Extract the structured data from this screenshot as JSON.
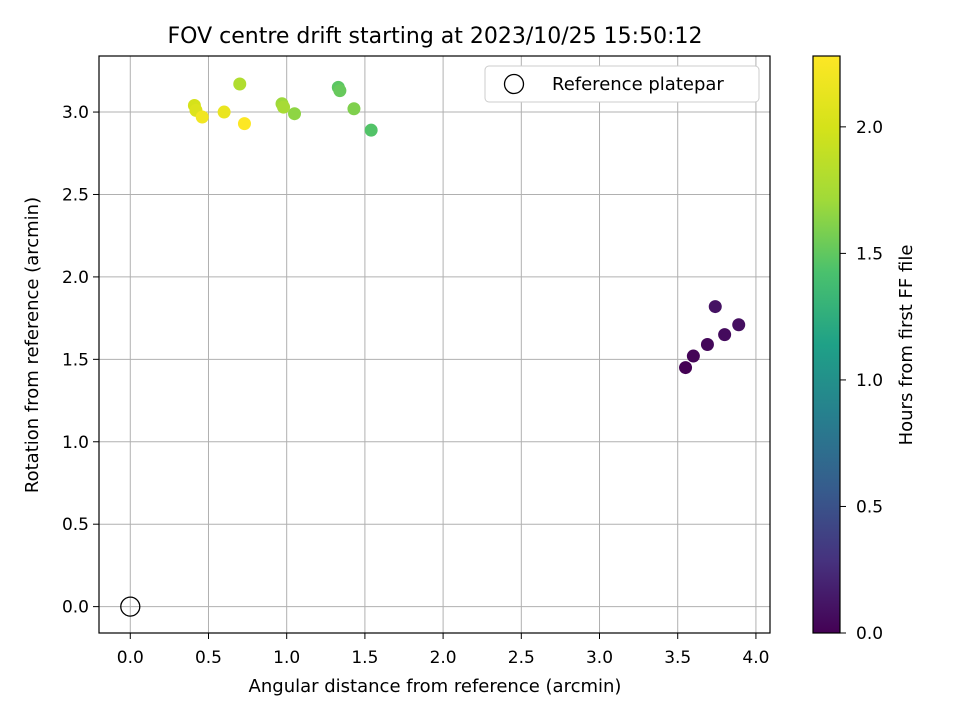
{
  "chart_data": {
    "type": "scatter",
    "title": "FOV centre drift starting at 2023/10/25 15:50:12",
    "xlabel": "Angular distance from reference (arcmin)",
    "ylabel": "Rotation from reference (arcmin)",
    "xlim": [
      -0.2,
      4.09
    ],
    "ylim": [
      -0.16,
      3.34
    ],
    "xticks": [
      "0.0",
      "0.5",
      "1.0",
      "1.5",
      "2.0",
      "2.5",
      "3.0",
      "3.5",
      "4.0"
    ],
    "yticks": [
      "0.0",
      "0.5",
      "1.0",
      "1.5",
      "2.0",
      "2.5",
      "3.0"
    ],
    "grid": true,
    "legend": {
      "label": "Reference platepar",
      "position": "top-right"
    },
    "reference_point": {
      "x": 0.0,
      "y": 0.0
    },
    "colorbar": {
      "label": "Hours from first FF file",
      "range": [
        0,
        2.28
      ],
      "ticks": [
        "0.0",
        "0.5",
        "1.0",
        "1.5",
        "2.0"
      ],
      "colormap": "viridis"
    },
    "points": [
      {
        "x": 3.55,
        "y": 1.45,
        "hours": 0.0
      },
      {
        "x": 3.6,
        "y": 1.52,
        "hours": 0.02
      },
      {
        "x": 3.69,
        "y": 1.59,
        "hours": 0.04
      },
      {
        "x": 3.8,
        "y": 1.65,
        "hours": 0.06
      },
      {
        "x": 3.89,
        "y": 1.71,
        "hours": 0.08
      },
      {
        "x": 3.74,
        "y": 1.82,
        "hours": 0.1
      },
      {
        "x": 1.54,
        "y": 2.89,
        "hours": 1.45
      },
      {
        "x": 1.33,
        "y": 3.15,
        "hours": 1.48
      },
      {
        "x": 1.34,
        "y": 3.13,
        "hours": 1.52
      },
      {
        "x": 1.43,
        "y": 3.02,
        "hours": 1.6
      },
      {
        "x": 1.05,
        "y": 2.99,
        "hours": 1.65
      },
      {
        "x": 0.97,
        "y": 3.05,
        "hours": 1.7
      },
      {
        "x": 0.98,
        "y": 3.03,
        "hours": 1.75
      },
      {
        "x": 0.7,
        "y": 3.17,
        "hours": 1.8
      },
      {
        "x": 0.41,
        "y": 3.04,
        "hours": 2.0
      },
      {
        "x": 0.42,
        "y": 3.01,
        "hours": 2.05
      },
      {
        "x": 0.6,
        "y": 3.0,
        "hours": 2.15
      },
      {
        "x": 0.46,
        "y": 2.97,
        "hours": 2.2
      },
      {
        "x": 0.73,
        "y": 2.93,
        "hours": 2.27
      }
    ]
  }
}
